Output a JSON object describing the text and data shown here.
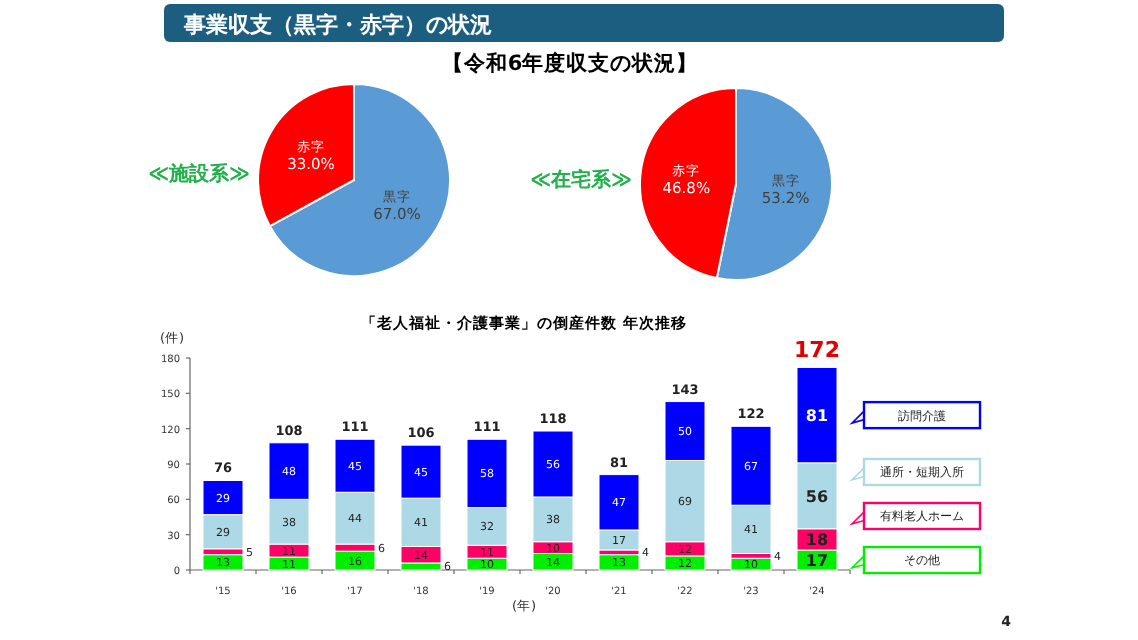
{
  "chart_data": [
    {
      "type": "pie",
      "title": "事業収支（黒字・赤字）の状況",
      "subtitle": "【令和6年度収支の状況】",
      "annotations": [
        "≪施設系≫"
      ],
      "categories": [
        "黒字",
        "赤字"
      ],
      "values": [
        67.0,
        33.0
      ],
      "colors": [
        "#5b9bd5",
        "#ff0000"
      ],
      "value_labels": [
        "67.0%",
        "33.0%"
      ],
      "data_labels": true
    },
    {
      "type": "pie",
      "annotations": [
        "≪在宅系≫"
      ],
      "categories": [
        "黒字",
        "赤字"
      ],
      "values": [
        53.2,
        46.8
      ],
      "colors": [
        "#5b9bd5",
        "#ff0000"
      ],
      "value_labels": [
        "53.2%",
        "46.8%"
      ],
      "data_labels": true
    },
    {
      "type": "bar",
      "stacked": true,
      "title": "「老人福祉・介護事業」の倒産件数  年次推移",
      "ylabel": "(件)",
      "xlabel": "(年)",
      "annotations": [
        "4"
      ],
      "categories": [
        "'15",
        "'16",
        "'17",
        "'18",
        "'19",
        "'20",
        "'21",
        "'22",
        "'23",
        "'24"
      ],
      "ylim": [
        0,
        180
      ],
      "yticks": [
        0,
        30,
        60,
        90,
        120,
        150,
        180
      ],
      "legend": "right",
      "data_labels": true,
      "totals": [
        "76",
        "108",
        "111",
        "106",
        "111",
        "118",
        "81",
        "143",
        "122",
        "172"
      ],
      "series": [
        {
          "name": "その他",
          "color": "#00ee00",
          "values": [
            13,
            11,
            16,
            6,
            10,
            14,
            13,
            12,
            10,
            17
          ]
        },
        {
          "name": "有料老人ホーム",
          "color": "#ff0066",
          "values": [
            5,
            11,
            6,
            14,
            11,
            10,
            4,
            12,
            4,
            18
          ]
        },
        {
          "name": "通所・短期入所",
          "color": "#add8e6",
          "values": [
            29,
            38,
            44,
            41,
            32,
            38,
            17,
            69,
            41,
            56
          ]
        },
        {
          "name": "訪問介護",
          "color": "#0000ff",
          "values": [
            29,
            48,
            45,
            45,
            58,
            56,
            47,
            50,
            67,
            81
          ]
        }
      ]
    }
  ]
}
